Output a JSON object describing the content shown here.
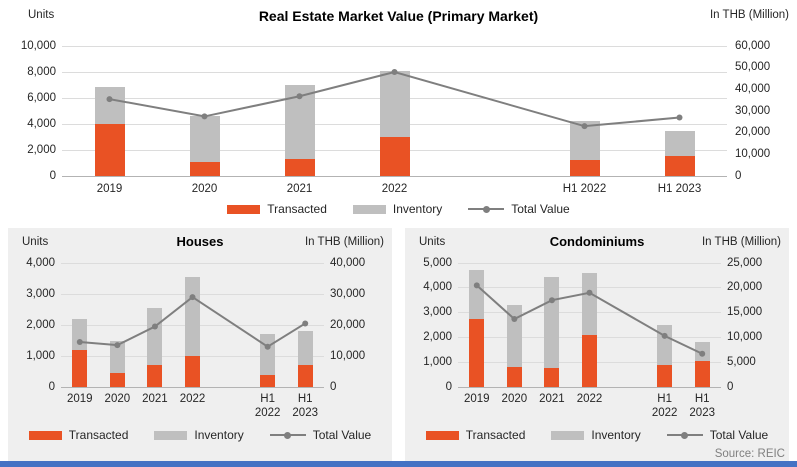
{
  "page": {
    "source_note": "Source: REIC"
  },
  "legend": {
    "transacted": "Transacted",
    "inventory": "Inventory",
    "total_value": "Total Value"
  },
  "colors": {
    "transacted": "#E95224",
    "inventory": "#BFBFBF",
    "total_value_line": "#7F7F7F",
    "panel_bg": "#EFEFEF",
    "grid": "#DCDCDC",
    "baseline": "#B3B3B3",
    "bottom_bar": "#4472C4",
    "source_text": "#808080"
  },
  "chart_data": [
    {
      "id": "primary-market",
      "type": "bar",
      "subtype": "stacked-bar-with-line",
      "title": "Real Estate Market Value (Primary Market)",
      "left_axis_label": "Units",
      "right_axis_label": "In THB (Million)",
      "left_max": 10000,
      "right_max": 60000,
      "left_ticks": [
        0,
        2000,
        4000,
        6000,
        8000,
        10000
      ],
      "right_ticks": [
        0,
        10000,
        20000,
        30000,
        40000,
        50000,
        60000
      ],
      "categories": [
        "2019",
        "2020",
        "2021",
        "2022",
        "H1 2022",
        "H1 2023"
      ],
      "grid": true,
      "legend_position": "bottom",
      "series": [
        {
          "name": "Transacted",
          "axis": "left",
          "values": [
            4000,
            1100,
            1300,
            3000,
            1200,
            1550
          ]
        },
        {
          "name": "Inventory",
          "axis": "left",
          "values": [
            2850,
            3500,
            5700,
            5100,
            3000,
            1950
          ]
        },
        {
          "name": "Total Value",
          "axis": "right",
          "type": "line",
          "values": [
            35500,
            27500,
            36800,
            48000,
            23000,
            27000
          ]
        }
      ]
    },
    {
      "id": "houses",
      "type": "bar",
      "subtype": "stacked-bar-with-line",
      "title": "Houses",
      "left_axis_label": "Units",
      "right_axis_label": "In THB (Million)",
      "left_max": 4000,
      "right_max": 40000,
      "left_ticks": [
        0,
        1000,
        2000,
        3000,
        4000
      ],
      "right_ticks": [
        0,
        10000,
        20000,
        30000,
        40000
      ],
      "categories": [
        "2019",
        "2020",
        "2021",
        "2022",
        "H1\n2022",
        "H1\n2023"
      ],
      "grid": true,
      "legend_position": "bottom",
      "series": [
        {
          "name": "Transacted",
          "axis": "left",
          "values": [
            1200,
            450,
            700,
            1000,
            400,
            700
          ]
        },
        {
          "name": "Inventory",
          "axis": "left",
          "values": [
            1000,
            1050,
            1850,
            2550,
            1300,
            1100
          ]
        },
        {
          "name": "Total Value",
          "axis": "right",
          "type": "line",
          "values": [
            14500,
            13500,
            19500,
            29000,
            13000,
            20500
          ]
        }
      ]
    },
    {
      "id": "condominiums",
      "type": "bar",
      "subtype": "stacked-bar-with-line",
      "title": "Condominiums",
      "left_axis_label": "Units",
      "right_axis_label": "In THB (Million)",
      "left_max": 5000,
      "right_max": 25000,
      "left_ticks": [
        0,
        1000,
        2000,
        3000,
        4000,
        5000
      ],
      "right_ticks": [
        0,
        5000,
        10000,
        15000,
        20000,
        25000
      ],
      "categories": [
        "2019",
        "2020",
        "2021",
        "2022",
        "H1\n2022",
        "H1\n2023"
      ],
      "grid": true,
      "legend_position": "bottom",
      "series": [
        {
          "name": "Transacted",
          "axis": "left",
          "values": [
            2750,
            800,
            750,
            2100,
            875,
            1050
          ]
        },
        {
          "name": "Inventory",
          "axis": "left",
          "values": [
            1950,
            2500,
            3700,
            2500,
            1625,
            750
          ]
        },
        {
          "name": "Total Value",
          "axis": "right",
          "type": "line",
          "values": [
            20500,
            13700,
            17500,
            19000,
            10300,
            6700
          ]
        }
      ]
    }
  ]
}
